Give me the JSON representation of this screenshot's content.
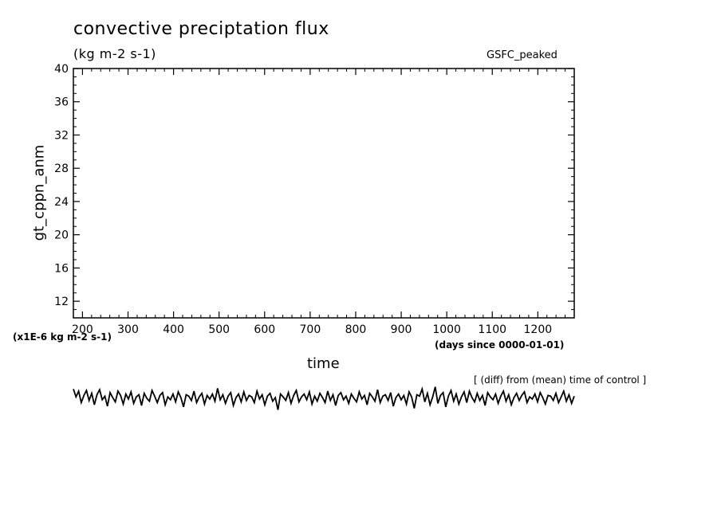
{
  "chart_data": {
    "type": "line",
    "title": "convective preciptation flux",
    "units": "(kg m-2 s-1)",
    "experiment": "GSFC_peaked",
    "ylabel": "gt_cppn_anm",
    "xlabel": "time",
    "x_units": "(days since 0000-01-01)",
    "y_scale_note": "(x1E-6 kg m-2 s-1)",
    "annotation": "[ (diff) from (mean) time of control ]",
    "xlim": [
      180,
      1280
    ],
    "ylim": [
      10,
      40
    ],
    "x_ticks": [
      200,
      300,
      400,
      500,
      600,
      700,
      800,
      900,
      1000,
      1100,
      1200
    ],
    "y_ticks": [
      12,
      16,
      20,
      24,
      28,
      32,
      36,
      40
    ],
    "grid": false,
    "series": [
      {
        "color": "#000000",
        "x_start": 180,
        "x_end": 1280,
        "values": [
          1.3,
          0.2,
          1.0,
          -0.6,
          0.4,
          1.1,
          -0.3,
          0.7,
          -0.9,
          0.5,
          1.2,
          -0.2,
          0.3,
          -1.1,
          0.8,
          0.1,
          -0.5,
          1.0,
          0.4,
          -0.8,
          0.6,
          -0.1,
          0.9,
          -0.7,
          0.2,
          0.5,
          -1.0,
          0.7,
          0.0,
          -0.4,
          1.1,
          0.3,
          -0.6,
          0.4,
          0.8,
          -0.9,
          0.2,
          -0.2,
          0.6,
          -0.5,
          0.9,
          0.1,
          -1.2,
          0.5,
          0.3,
          -0.3,
          1.0,
          -0.6,
          0.2,
          0.7,
          -0.8,
          0.4,
          -0.1,
          0.6,
          -0.4,
          1.4,
          -0.2,
          0.5,
          -0.7,
          0.3,
          0.8,
          -1.0,
          0.1,
          0.6,
          -0.5,
          0.9,
          -0.3,
          0.4,
          0.2,
          -0.6,
          1.0,
          -0.1,
          0.5,
          -0.9,
          0.3,
          0.7,
          -0.4,
          0.1,
          -1.6,
          0.6,
          0.2,
          -0.3,
          0.8,
          -0.7,
          0.4,
          1.1,
          -0.5,
          0.2,
          0.6,
          -0.2,
          0.9,
          -0.8,
          0.3,
          -0.4,
          0.7,
          0.1,
          -0.6,
          1.0,
          -0.3,
          0.5,
          -1.0,
          0.4,
          0.8,
          -0.2,
          0.3,
          -0.7,
          0.6,
          0.0,
          -0.5,
          0.9,
          -0.1,
          0.4,
          -0.9,
          0.7,
          0.2,
          -0.4,
          1.2,
          -0.6,
          0.3,
          0.5,
          -0.3,
          0.8,
          -1.1,
          0.1,
          0.6,
          -0.2,
          0.4,
          -0.8,
          0.9,
          0.2,
          -1.4,
          0.5,
          0.3,
          1.3,
          -0.5,
          0.7,
          -0.9,
          0.2,
          1.6,
          -0.7,
          0.4,
          0.8,
          -1.2,
          0.3,
          1.1,
          -0.4,
          0.6,
          -0.8,
          0.2,
          0.9,
          -0.6,
          1.0,
          0.1,
          -0.5,
          0.7,
          -0.3,
          0.4,
          -1.0,
          0.8,
          0.2,
          -0.2,
          0.6,
          -0.7,
          0.3,
          1.0,
          -0.4,
          0.5,
          -0.9,
          0.1,
          0.7,
          -0.3,
          0.4,
          0.9,
          -0.6,
          0.2,
          -0.1,
          0.6,
          -0.5,
          0.8,
          0.1,
          -0.8,
          0.4,
          0.3,
          -0.3,
          0.7,
          -0.6,
          0.2,
          1.0,
          -0.4,
          0.5,
          -0.7,
          0.3
        ]
      }
    ]
  }
}
